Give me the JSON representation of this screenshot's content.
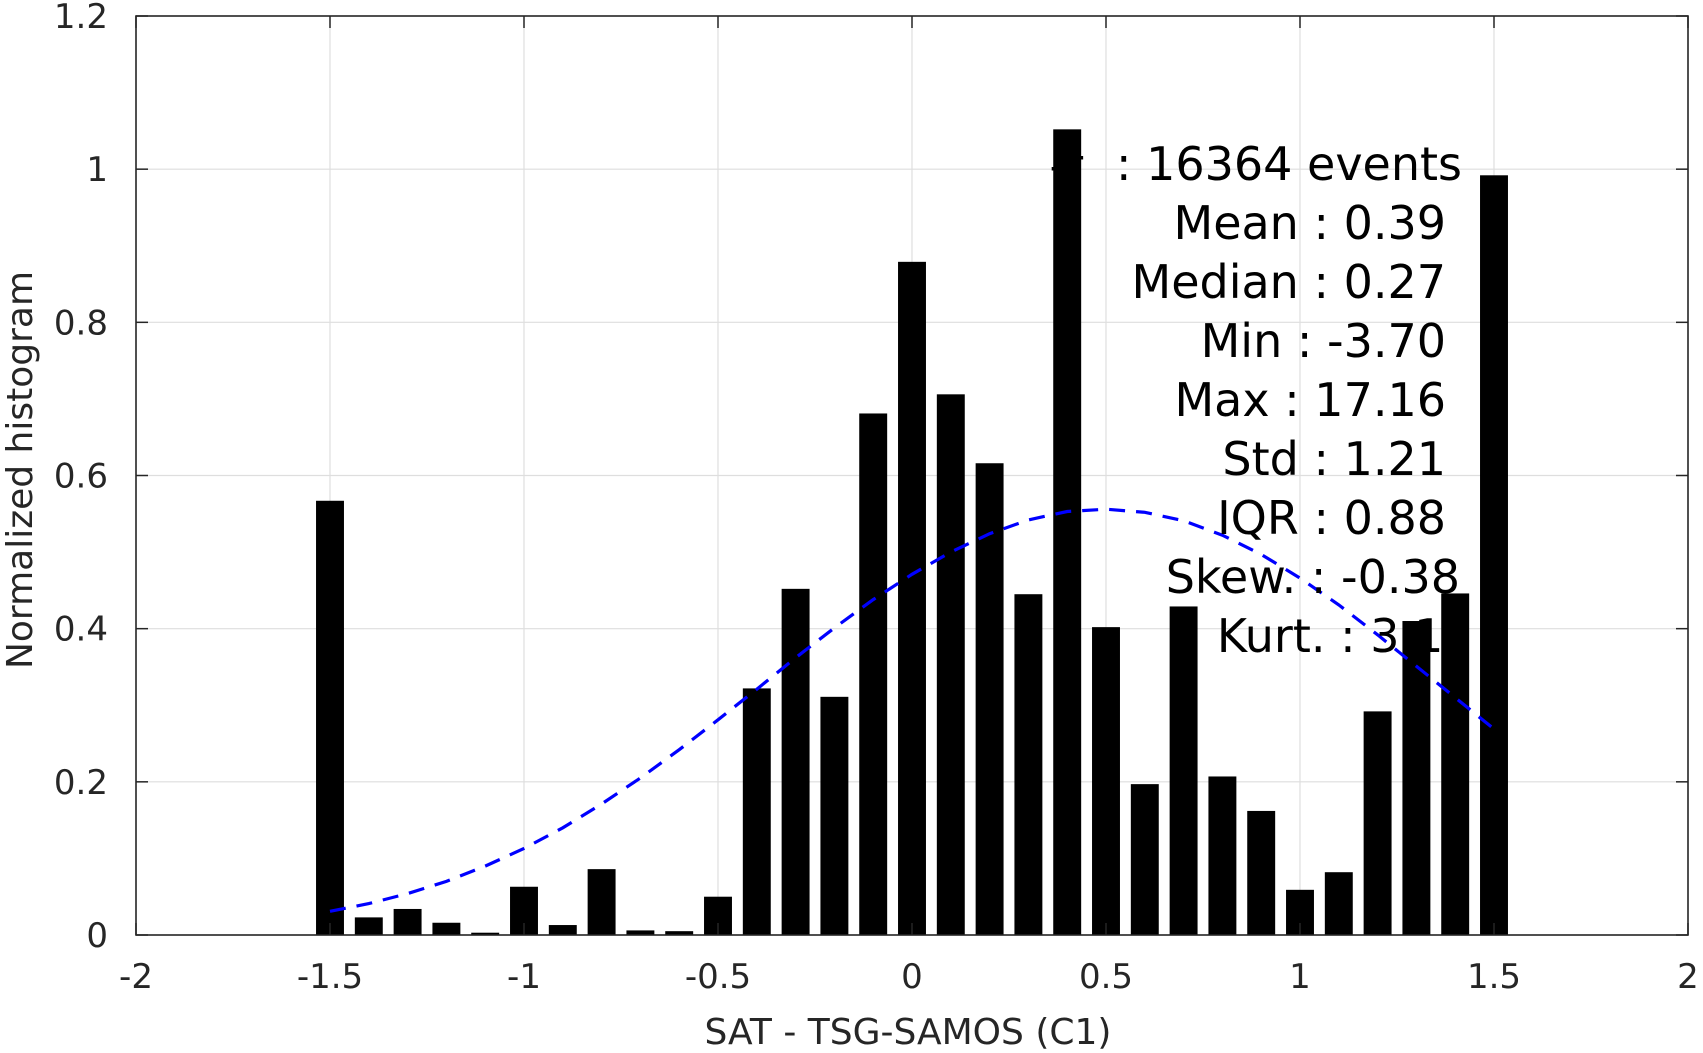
{
  "chart_data": {
    "type": "bar",
    "xlabel": "SAT - TSG-SAMOS (C1)",
    "ylabel": "Normalized histogram",
    "xlim": [
      -2,
      2
    ],
    "ylim": [
      0,
      1.2
    ],
    "xticks": [
      "-2",
      "-1.5",
      "-1",
      "-0.5",
      "0",
      "0.5",
      "1",
      "1.5",
      "2"
    ],
    "yticks": [
      "0",
      "0.2",
      "0.4",
      "0.6",
      "0.8",
      "1",
      "1.2"
    ],
    "grid": true,
    "bar_color": "#000000",
    "x": [
      -1.5,
      -1.4,
      -1.3,
      -1.2,
      -1.1,
      -1.0,
      -0.9,
      -0.8,
      -0.7,
      -0.6,
      -0.5,
      -0.4,
      -0.3,
      -0.2,
      -0.1,
      0.0,
      0.1,
      0.2,
      0.3,
      0.4,
      0.5,
      0.6,
      0.7,
      0.8,
      0.9,
      1.0,
      1.1,
      1.2,
      1.3,
      1.4,
      1.5
    ],
    "values": [
      0.567,
      0.023,
      0.034,
      0.016,
      0.003,
      0.063,
      0.013,
      0.086,
      0.006,
      0.005,
      0.05,
      0.322,
      0.452,
      0.311,
      0.681,
      0.879,
      0.706,
      0.616,
      0.445,
      1.052,
      0.402,
      0.197,
      0.429,
      0.207,
      0.162,
      0.059,
      0.082,
      0.292,
      0.41,
      0.446,
      0.992
    ],
    "fit_curve": {
      "style": "dashed",
      "color": "#0000ff",
      "x": [
        -1.5,
        -1.4,
        -1.3,
        -1.2,
        -1.1,
        -1.0,
        -0.9,
        -0.8,
        -0.7,
        -0.6,
        -0.5,
        -0.4,
        -0.3,
        -0.2,
        -0.1,
        0.0,
        0.1,
        0.2,
        0.3,
        0.4,
        0.5,
        0.6,
        0.7,
        0.8,
        0.9,
        1.0,
        1.1,
        1.2,
        1.3,
        1.4,
        1.5
      ],
      "y": [
        0.031,
        0.041,
        0.054,
        0.07,
        0.09,
        0.113,
        0.14,
        0.171,
        0.205,
        0.242,
        0.281,
        0.321,
        0.362,
        0.401,
        0.438,
        0.471,
        0.5,
        0.524,
        0.542,
        0.553,
        0.556,
        0.552,
        0.541,
        0.522,
        0.497,
        0.466,
        0.431,
        0.392,
        0.351,
        0.31,
        0.269
      ]
    },
    "annotations": [
      "#  : 16364 events",
      "Mean : 0.39",
      "Median : 0.27",
      "Min : -3.70",
      "Max : 17.16",
      "Std : 1.21",
      "IQR : 0.88",
      "Skew. : -0.38",
      "Kurt. : 3.1 "
    ]
  }
}
